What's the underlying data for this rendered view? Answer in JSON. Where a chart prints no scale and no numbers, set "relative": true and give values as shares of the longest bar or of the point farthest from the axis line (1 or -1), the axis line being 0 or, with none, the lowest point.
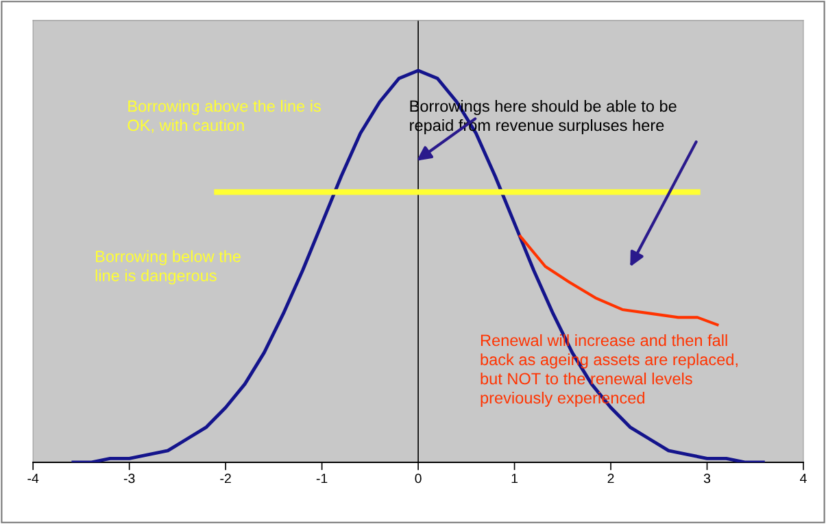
{
  "chart_data": {
    "type": "line",
    "relative": true,
    "tick_labels": "x",
    "grid": false,
    "legend": false,
    "marker": "none",
    "xlim": [
      -4,
      4
    ],
    "xticks": [
      -4,
      -3,
      -2,
      -1,
      0,
      1,
      2,
      3,
      4
    ],
    "series": [
      {
        "color": "#14148c",
        "x": [
          -3.6,
          -3.4,
          -3.2,
          -3.0,
          -2.8,
          -2.6,
          -2.4,
          -2.2,
          -2.0,
          -1.8,
          -1.6,
          -1.4,
          -1.2,
          -1.0,
          -0.8,
          -0.6,
          -0.4,
          -0.2,
          0.0,
          0.2,
          0.4,
          0.6,
          0.8,
          1.0,
          1.2,
          1.4,
          1.6,
          1.8,
          2.0,
          2.2,
          2.4,
          2.6,
          2.8,
          3.0,
          3.2,
          3.4,
          3.6
        ],
        "values": [
          0.0,
          0.0,
          0.01,
          0.01,
          0.02,
          0.03,
          0.06,
          0.09,
          0.14,
          0.2,
          0.28,
          0.38,
          0.49,
          0.61,
          0.73,
          0.84,
          0.92,
          0.98,
          1.0,
          0.98,
          0.92,
          0.84,
          0.73,
          0.61,
          0.49,
          0.38,
          0.28,
          0.2,
          0.14,
          0.09,
          0.06,
          0.03,
          0.02,
          0.01,
          0.01,
          0.0,
          0.0
        ]
      },
      {
        "color": "#ffff33",
        "x": [
          -2.12,
          2.93
        ],
        "values": [
          0.69,
          0.69
        ]
      },
      {
        "color": "#ff3300",
        "x": [
          1.05,
          1.32,
          1.57,
          1.84,
          2.12,
          2.41,
          2.7,
          2.9,
          3.12
        ],
        "values": [
          0.58,
          0.5,
          0.46,
          0.42,
          0.39,
          0.38,
          0.37,
          0.37,
          0.35
        ]
      }
    ],
    "ref_lines": [
      {
        "axis": "x",
        "value": 0,
        "color": "#000000"
      }
    ],
    "annotations": [
      "Borrowing above the line is\nOK, with caution",
      "Borrowings here should be able to be\nrepaid from revenue surpluses here",
      "Borrowing below the\nline is dangerous",
      "Renewal will increase and then fall\nback as ageing assets are replaced,\nbut NOT to the renewal levels\npreviously experienced"
    ]
  }
}
